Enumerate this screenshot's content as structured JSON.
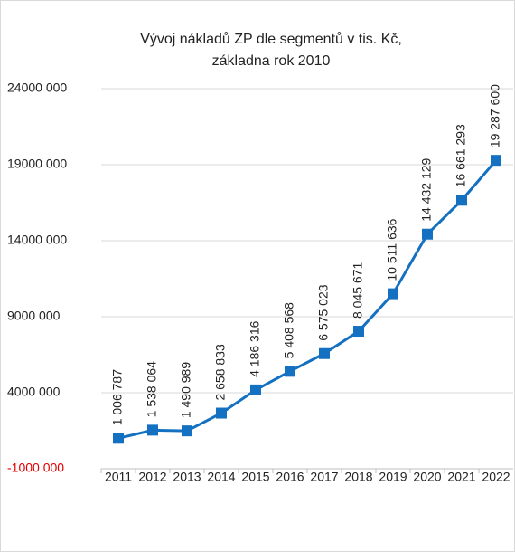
{
  "chart_data": {
    "type": "line",
    "title": [
      "Vývoj nákladů ZP dle segmentů v tis. Kč,",
      "základna rok 2010"
    ],
    "categories": [
      "2011",
      "2012",
      "2013",
      "2014",
      "2015",
      "2016",
      "2017",
      "2018",
      "2019",
      "2020",
      "2021",
      "2022"
    ],
    "series": [
      {
        "name": "Náklady",
        "color": "#1470c0",
        "values": [
          1006787,
          1538064,
          1490989,
          2658833,
          4186316,
          5408568,
          6575023,
          8045671,
          10511636,
          14432129,
          16661293,
          19287600
        ],
        "value_labels": [
          "1 006 787",
          "1 538 064",
          "1 490 989",
          "2 658 833",
          "4 186 316",
          "5 408 568",
          "6 575 023",
          "8 045 671",
          "10 511 636",
          "14 432 129",
          "16 661 293",
          "19 287 600"
        ]
      }
    ],
    "ylim": [
      -1000000,
      24000000
    ],
    "yticks": [
      {
        "value": -1000000,
        "label": "-1000 000",
        "color": "#e00000"
      },
      {
        "value": 4000000,
        "label": "4000 000"
      },
      {
        "value": 9000000,
        "label": "9000 000"
      },
      {
        "value": 14000000,
        "label": "14000 000"
      },
      {
        "value": 19000000,
        "label": "19000 000"
      },
      {
        "value": 24000000,
        "label": "24000 000"
      }
    ],
    "grid": true
  }
}
